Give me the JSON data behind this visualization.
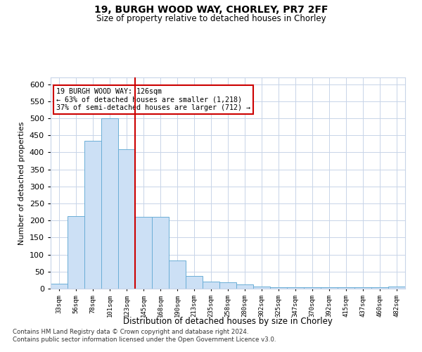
{
  "title_line1": "19, BURGH WOOD WAY, CHORLEY, PR7 2FF",
  "title_line2": "Size of property relative to detached houses in Chorley",
  "xlabel": "Distribution of detached houses by size in Chorley",
  "ylabel": "Number of detached properties",
  "footnote": "Contains HM Land Registry data © Crown copyright and database right 2024.\nContains public sector information licensed under the Open Government Licence v3.0.",
  "annotation_line1": "19 BURGH WOOD WAY: 126sqm",
  "annotation_line2": "← 63% of detached houses are smaller (1,218)",
  "annotation_line3": "37% of semi-detached houses are larger (712) →",
  "bar_color": "#cce0f5",
  "bar_edge_color": "#6baed6",
  "highlight_color": "#cc0000",
  "categories": [
    "33sqm",
    "56sqm",
    "78sqm",
    "101sqm",
    "123sqm",
    "145sqm",
    "168sqm",
    "190sqm",
    "213sqm",
    "235sqm",
    "258sqm",
    "280sqm",
    "302sqm",
    "325sqm",
    "347sqm",
    "370sqm",
    "392sqm",
    "415sqm",
    "437sqm",
    "460sqm",
    "482sqm"
  ],
  "values": [
    15,
    212,
    435,
    500,
    410,
    210,
    210,
    82,
    38,
    20,
    18,
    13,
    6,
    5,
    5,
    5,
    5,
    5,
    5,
    5,
    6
  ],
  "ylim": [
    0,
    620
  ],
  "yticks": [
    0,
    50,
    100,
    150,
    200,
    250,
    300,
    350,
    400,
    450,
    500,
    550,
    600
  ],
  "highlight_bar_index": 4,
  "red_line_index": 5,
  "background_color": "#ffffff",
  "grid_color": "#c8d4e8"
}
